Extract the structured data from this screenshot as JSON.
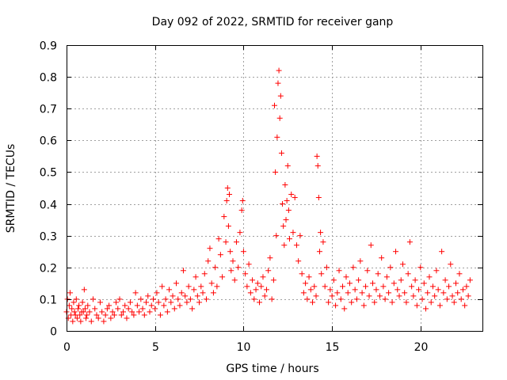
{
  "chart_data": {
    "type": "scatter",
    "title": "Day 092 of 2022, SRMTID for receiver ganp",
    "xlabel": "GPS time / hours",
    "ylabel": "SRMTID / TECUs",
    "xlim": [
      0,
      23.5
    ],
    "ylim": [
      0,
      0.9
    ],
    "xticks": [
      0,
      5,
      10,
      15,
      20
    ],
    "yticks": [
      0,
      0.1,
      0.2,
      0.3,
      0.4,
      0.5,
      0.6,
      0.7,
      0.8,
      0.9
    ],
    "xtick_labels": [
      "0",
      "5",
      "10",
      "15",
      "20"
    ],
    "ytick_labels": [
      "0",
      "0.1",
      "0.2",
      "0.3",
      "0.4",
      "0.5",
      "0.6",
      "0.7",
      "0.8",
      "0.9"
    ],
    "grid": true,
    "marker": "+",
    "color": "#ff0000",
    "series": [
      {
        "name": "SRMTID",
        "points": [
          [
            0.0,
            0.06
          ],
          [
            0.05,
            0.1
          ],
          [
            0.1,
            0.04
          ],
          [
            0.15,
            0.08
          ],
          [
            0.2,
            0.12
          ],
          [
            0.25,
            0.05
          ],
          [
            0.3,
            0.07
          ],
          [
            0.35,
            0.03
          ],
          [
            0.4,
            0.09
          ],
          [
            0.45,
            0.06
          ],
          [
            0.5,
            0.05
          ],
          [
            0.55,
            0.1
          ],
          [
            0.6,
            0.04
          ],
          [
            0.65,
            0.07
          ],
          [
            0.7,
            0.08
          ],
          [
            0.75,
            0.05
          ],
          [
            0.8,
            0.03
          ],
          [
            0.85,
            0.06
          ],
          [
            0.9,
            0.09
          ],
          [
            0.95,
            0.06
          ],
          [
            1.0,
            0.13
          ],
          [
            1.05,
            0.07
          ],
          [
            1.1,
            0.04
          ],
          [
            1.15,
            0.05
          ],
          [
            1.2,
            0.08
          ],
          [
            1.3,
            0.06
          ],
          [
            1.4,
            0.03
          ],
          [
            1.5,
            0.1
          ],
          [
            1.6,
            0.07
          ],
          [
            1.7,
            0.05
          ],
          [
            1.8,
            0.04
          ],
          [
            1.9,
            0.09
          ],
          [
            2.0,
            0.06
          ],
          [
            2.1,
            0.03
          ],
          [
            2.2,
            0.05
          ],
          [
            2.3,
            0.07
          ],
          [
            2.4,
            0.08
          ],
          [
            2.5,
            0.04
          ],
          [
            2.6,
            0.06
          ],
          [
            2.7,
            0.05
          ],
          [
            2.8,
            0.09
          ],
          [
            2.9,
            0.07
          ],
          [
            3.0,
            0.1
          ],
          [
            3.1,
            0.05
          ],
          [
            3.2,
            0.06
          ],
          [
            3.3,
            0.08
          ],
          [
            3.4,
            0.04
          ],
          [
            3.5,
            0.07
          ],
          [
            3.6,
            0.09
          ],
          [
            3.7,
            0.06
          ],
          [
            3.8,
            0.05
          ],
          [
            3.9,
            0.12
          ],
          [
            4.0,
            0.08
          ],
          [
            4.1,
            0.06
          ],
          [
            4.2,
            0.1
          ],
          [
            4.3,
            0.07
          ],
          [
            4.4,
            0.05
          ],
          [
            4.5,
            0.09
          ],
          [
            4.6,
            0.11
          ],
          [
            4.7,
            0.06
          ],
          [
            4.8,
            0.08
          ],
          [
            4.9,
            0.1
          ],
          [
            5.0,
            0.07
          ],
          [
            5.1,
            0.12
          ],
          [
            5.2,
            0.09
          ],
          [
            5.3,
            0.05
          ],
          [
            5.4,
            0.14
          ],
          [
            5.5,
            0.08
          ],
          [
            5.6,
            0.1
          ],
          [
            5.7,
            0.06
          ],
          [
            5.8,
            0.13
          ],
          [
            5.9,
            0.09
          ],
          [
            6.0,
            0.11
          ],
          [
            6.1,
            0.07
          ],
          [
            6.2,
            0.15
          ],
          [
            6.3,
            0.1
          ],
          [
            6.4,
            0.08
          ],
          [
            6.5,
            0.12
          ],
          [
            6.6,
            0.19
          ],
          [
            6.7,
            0.11
          ],
          [
            6.8,
            0.09
          ],
          [
            6.9,
            0.14
          ],
          [
            7.0,
            0.1
          ],
          [
            7.1,
            0.07
          ],
          [
            7.2,
            0.13
          ],
          [
            7.3,
            0.17
          ],
          [
            7.4,
            0.11
          ],
          [
            7.5,
            0.09
          ],
          [
            7.6,
            0.14
          ],
          [
            7.7,
            0.12
          ],
          [
            7.8,
            0.18
          ],
          [
            7.9,
            0.1
          ],
          [
            8.0,
            0.22
          ],
          [
            8.1,
            0.26
          ],
          [
            8.2,
            0.15
          ],
          [
            8.3,
            0.12
          ],
          [
            8.4,
            0.2
          ],
          [
            8.5,
            0.14
          ],
          [
            8.6,
            0.29
          ],
          [
            8.7,
            0.24
          ],
          [
            8.8,
            0.17
          ],
          [
            8.9,
            0.36
          ],
          [
            9.0,
            0.28
          ],
          [
            9.05,
            0.41
          ],
          [
            9.1,
            0.45
          ],
          [
            9.15,
            0.33
          ],
          [
            9.2,
            0.43
          ],
          [
            9.25,
            0.25
          ],
          [
            9.3,
            0.19
          ],
          [
            9.4,
            0.22
          ],
          [
            9.5,
            0.16
          ],
          [
            9.6,
            0.28
          ],
          [
            9.7,
            0.2
          ],
          [
            9.8,
            0.31
          ],
          [
            9.9,
            0.38
          ],
          [
            9.95,
            0.41
          ],
          [
            10.0,
            0.25
          ],
          [
            10.1,
            0.18
          ],
          [
            10.2,
            0.14
          ],
          [
            10.3,
            0.21
          ],
          [
            10.4,
            0.12
          ],
          [
            10.5,
            0.16
          ],
          [
            10.6,
            0.1
          ],
          [
            10.7,
            0.13
          ],
          [
            10.8,
            0.15
          ],
          [
            10.9,
            0.09
          ],
          [
            11.0,
            0.14
          ],
          [
            11.1,
            0.17
          ],
          [
            11.2,
            0.11
          ],
          [
            11.3,
            0.13
          ],
          [
            11.4,
            0.19
          ],
          [
            11.5,
            0.23
          ],
          [
            11.6,
            0.1
          ],
          [
            11.7,
            0.16
          ],
          [
            11.75,
            0.71
          ],
          [
            11.8,
            0.5
          ],
          [
            11.85,
            0.3
          ],
          [
            11.9,
            0.61
          ],
          [
            11.95,
            0.78
          ],
          [
            12.0,
            0.82
          ],
          [
            12.05,
            0.67
          ],
          [
            12.1,
            0.74
          ],
          [
            12.15,
            0.56
          ],
          [
            12.2,
            0.4
          ],
          [
            12.25,
            0.33
          ],
          [
            12.3,
            0.27
          ],
          [
            12.35,
            0.46
          ],
          [
            12.4,
            0.35
          ],
          [
            12.45,
            0.41
          ],
          [
            12.5,
            0.52
          ],
          [
            12.55,
            0.38
          ],
          [
            12.6,
            0.29
          ],
          [
            12.7,
            0.43
          ],
          [
            12.8,
            0.31
          ],
          [
            12.9,
            0.42
          ],
          [
            13.0,
            0.27
          ],
          [
            13.1,
            0.22
          ],
          [
            13.2,
            0.3
          ],
          [
            13.3,
            0.18
          ],
          [
            13.4,
            0.12
          ],
          [
            13.5,
            0.15
          ],
          [
            13.6,
            0.1
          ],
          [
            13.7,
            0.17
          ],
          [
            13.8,
            0.13
          ],
          [
            13.9,
            0.09
          ],
          [
            14.0,
            0.14
          ],
          [
            14.1,
            0.11
          ],
          [
            14.15,
            0.55
          ],
          [
            14.2,
            0.52
          ],
          [
            14.25,
            0.42
          ],
          [
            14.3,
            0.25
          ],
          [
            14.35,
            0.31
          ],
          [
            14.4,
            0.18
          ],
          [
            14.5,
            0.28
          ],
          [
            14.6,
            0.14
          ],
          [
            14.7,
            0.2
          ],
          [
            14.8,
            0.09
          ],
          [
            14.9,
            0.13
          ],
          [
            15.0,
            0.11
          ],
          [
            15.1,
            0.16
          ],
          [
            15.2,
            0.08
          ],
          [
            15.3,
            0.12
          ],
          [
            15.4,
            0.19
          ],
          [
            15.5,
            0.1
          ],
          [
            15.6,
            0.14
          ],
          [
            15.7,
            0.07
          ],
          [
            15.8,
            0.17
          ],
          [
            15.9,
            0.12
          ],
          [
            16.0,
            0.15
          ],
          [
            16.1,
            0.09
          ],
          [
            16.2,
            0.2
          ],
          [
            16.3,
            0.13
          ],
          [
            16.4,
            0.1
          ],
          [
            16.5,
            0.16
          ],
          [
            16.6,
            0.22
          ],
          [
            16.7,
            0.12
          ],
          [
            16.8,
            0.08
          ],
          [
            16.9,
            0.14
          ],
          [
            17.0,
            0.19
          ],
          [
            17.1,
            0.11
          ],
          [
            17.2,
            0.27
          ],
          [
            17.3,
            0.15
          ],
          [
            17.4,
            0.09
          ],
          [
            17.5,
            0.13
          ],
          [
            17.6,
            0.18
          ],
          [
            17.7,
            0.11
          ],
          [
            17.8,
            0.23
          ],
          [
            17.9,
            0.14
          ],
          [
            18.0,
            0.1
          ],
          [
            18.1,
            0.17
          ],
          [
            18.2,
            0.12
          ],
          [
            18.3,
            0.2
          ],
          [
            18.4,
            0.09
          ],
          [
            18.5,
            0.15
          ],
          [
            18.6,
            0.25
          ],
          [
            18.7,
            0.13
          ],
          [
            18.8,
            0.11
          ],
          [
            18.9,
            0.16
          ],
          [
            19.0,
            0.21
          ],
          [
            19.1,
            0.12
          ],
          [
            19.2,
            0.09
          ],
          [
            19.3,
            0.18
          ],
          [
            19.4,
            0.28
          ],
          [
            19.5,
            0.14
          ],
          [
            19.6,
            0.11
          ],
          [
            19.7,
            0.16
          ],
          [
            19.8,
            0.08
          ],
          [
            19.9,
            0.13
          ],
          [
            20.0,
            0.2
          ],
          [
            20.1,
            0.1
          ],
          [
            20.2,
            0.15
          ],
          [
            20.3,
            0.07
          ],
          [
            20.4,
            0.12
          ],
          [
            20.5,
            0.17
          ],
          [
            20.6,
            0.09
          ],
          [
            20.7,
            0.14
          ],
          [
            20.8,
            0.11
          ],
          [
            20.9,
            0.19
          ],
          [
            21.0,
            0.13
          ],
          [
            21.1,
            0.08
          ],
          [
            21.2,
            0.25
          ],
          [
            21.3,
            0.12
          ],
          [
            21.4,
            0.16
          ],
          [
            21.5,
            0.1
          ],
          [
            21.6,
            0.14
          ],
          [
            21.7,
            0.21
          ],
          [
            21.8,
            0.11
          ],
          [
            21.9,
            0.09
          ],
          [
            22.0,
            0.15
          ],
          [
            22.1,
            0.12
          ],
          [
            22.2,
            0.18
          ],
          [
            22.3,
            0.1
          ],
          [
            22.4,
            0.13
          ],
          [
            22.5,
            0.08
          ],
          [
            22.6,
            0.14
          ],
          [
            22.7,
            0.11
          ],
          [
            22.8,
            0.16
          ]
        ]
      }
    ]
  }
}
